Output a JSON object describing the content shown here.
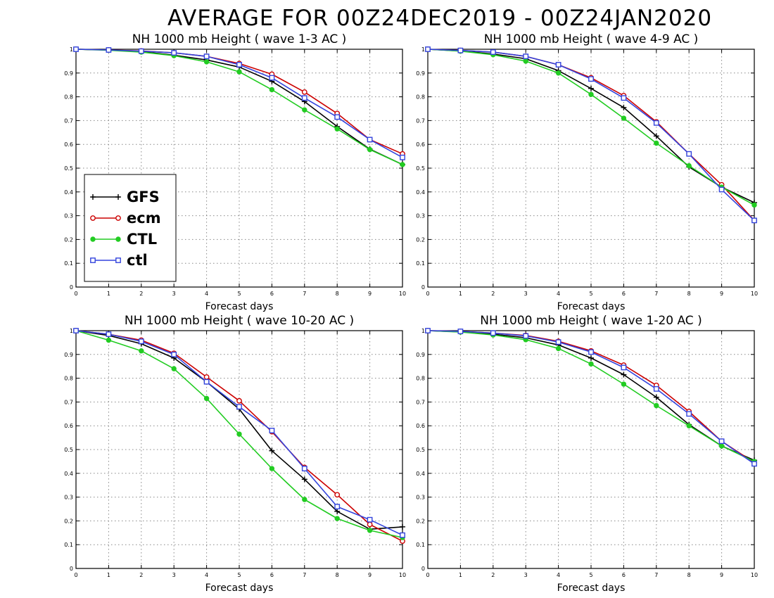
{
  "title": "AVERAGE FOR 00Z24DEC2019 - 00Z24JAN2020",
  "chart_data": [
    {
      "type": "line",
      "title": "NH 1000 mb Height ( wave 1-3 AC )",
      "xlabel": "Forecast days",
      "ylabel": "",
      "xlim": [
        0,
        10
      ],
      "ylim": [
        0,
        1
      ],
      "x": [
        0,
        1,
        2,
        3,
        4,
        5,
        6,
        7,
        8,
        9,
        10
      ],
      "xticks": [
        "0",
        "1",
        "2",
        "3",
        "4",
        "5",
        "6",
        "7",
        "8",
        "9",
        "10"
      ],
      "yticks": [
        "0",
        "0.1",
        "0.2",
        "0.3",
        "0.4",
        "0.5",
        "0.6",
        "0.7",
        "0.8",
        "0.9",
        "1"
      ],
      "grid": true,
      "series": [
        {
          "name": "GFS",
          "values": [
            1.0,
            0.997,
            0.99,
            0.975,
            0.955,
            0.925,
            0.865,
            0.78,
            0.675,
            0.58,
            0.515
          ]
        },
        {
          "name": "ecm",
          "values": [
            1.0,
            0.997,
            0.993,
            0.985,
            0.97,
            0.94,
            0.895,
            0.82,
            0.73,
            0.62,
            0.56
          ]
        },
        {
          "name": "CTL",
          "values": [
            1.0,
            0.996,
            0.988,
            0.973,
            0.947,
            0.905,
            0.83,
            0.745,
            0.665,
            0.578,
            0.515
          ]
        },
        {
          "name": "ctl",
          "values": [
            1.0,
            0.997,
            0.992,
            0.985,
            0.97,
            0.935,
            0.88,
            0.795,
            0.715,
            0.62,
            0.545
          ]
        }
      ]
    },
    {
      "type": "line",
      "title": "NH 1000 mb Height ( wave 4-9 AC )",
      "xlabel": "Forecast days",
      "ylabel": "",
      "xlim": [
        0,
        10
      ],
      "ylim": [
        0,
        1
      ],
      "x": [
        0,
        1,
        2,
        3,
        4,
        5,
        6,
        7,
        8,
        9,
        10
      ],
      "xticks": [
        "0",
        "1",
        "2",
        "3",
        "4",
        "5",
        "6",
        "7",
        "8",
        "9",
        "10"
      ],
      "yticks": [
        "0",
        "0.1",
        "0.2",
        "0.3",
        "0.4",
        "0.5",
        "0.6",
        "0.7",
        "0.8",
        "0.9",
        "1"
      ],
      "grid": true,
      "series": [
        {
          "name": "GFS",
          "values": [
            1.0,
            0.993,
            0.98,
            0.96,
            0.91,
            0.835,
            0.755,
            0.635,
            0.505,
            0.42,
            0.355
          ]
        },
        {
          "name": "ecm",
          "values": [
            1.0,
            0.995,
            0.988,
            0.97,
            0.935,
            0.88,
            0.805,
            0.695,
            0.56,
            0.43,
            0.28
          ]
        },
        {
          "name": "CTL",
          "values": [
            1.0,
            0.992,
            0.977,
            0.95,
            0.9,
            0.81,
            0.71,
            0.605,
            0.51,
            0.42,
            0.345
          ]
        },
        {
          "name": "ctl",
          "values": [
            1.0,
            0.995,
            0.988,
            0.97,
            0.935,
            0.875,
            0.795,
            0.69,
            0.56,
            0.41,
            0.28
          ]
        }
      ]
    },
    {
      "type": "line",
      "title": "NH 1000 mb Height ( wave 10-20 AC )",
      "xlabel": "Forecast days",
      "ylabel": "",
      "xlim": [
        0,
        10
      ],
      "ylim": [
        0,
        1
      ],
      "x": [
        0,
        1,
        2,
        3,
        4,
        5,
        6,
        7,
        8,
        9,
        10
      ],
      "xticks": [
        "0",
        "1",
        "2",
        "3",
        "4",
        "5",
        "6",
        "7",
        "8",
        "9",
        "10"
      ],
      "yticks": [
        "0",
        "0.1",
        "0.2",
        "0.3",
        "0.4",
        "0.5",
        "0.6",
        "0.7",
        "0.8",
        "0.9",
        "1"
      ],
      "grid": true,
      "series": [
        {
          "name": "GFS",
          "values": [
            1.0,
            0.98,
            0.945,
            0.885,
            0.785,
            0.67,
            0.495,
            0.375,
            0.24,
            0.165,
            0.175
          ]
        },
        {
          "name": "ecm",
          "values": [
            1.0,
            0.985,
            0.96,
            0.905,
            0.805,
            0.705,
            0.575,
            0.425,
            0.31,
            0.185,
            0.115
          ]
        },
        {
          "name": "CTL",
          "values": [
            1.0,
            0.96,
            0.915,
            0.84,
            0.715,
            0.565,
            0.42,
            0.29,
            0.21,
            0.16,
            0.13
          ]
        },
        {
          "name": "ctl",
          "values": [
            1.0,
            0.985,
            0.955,
            0.9,
            0.785,
            0.68,
            0.58,
            0.42,
            0.26,
            0.205,
            0.14
          ]
        }
      ]
    },
    {
      "type": "line",
      "title": "NH 1000 mb Height ( wave 1-20 AC )",
      "xlabel": "Forecast days",
      "ylabel": "",
      "xlim": [
        0,
        10
      ],
      "ylim": [
        0,
        1
      ],
      "x": [
        0,
        1,
        2,
        3,
        4,
        5,
        6,
        7,
        8,
        9,
        10
      ],
      "xticks": [
        "0",
        "1",
        "2",
        "3",
        "4",
        "5",
        "6",
        "7",
        "8",
        "9",
        "10"
      ],
      "yticks": [
        "0",
        "0.1",
        "0.2",
        "0.3",
        "0.4",
        "0.5",
        "0.6",
        "0.7",
        "0.8",
        "0.9",
        "1"
      ],
      "grid": true,
      "series": [
        {
          "name": "GFS",
          "values": [
            1.0,
            0.995,
            0.985,
            0.97,
            0.94,
            0.885,
            0.815,
            0.72,
            0.605,
            0.515,
            0.455
          ]
        },
        {
          "name": "ecm",
          "values": [
            1.0,
            0.997,
            0.99,
            0.98,
            0.955,
            0.915,
            0.855,
            0.77,
            0.66,
            0.535,
            0.445
          ]
        },
        {
          "name": "CTL",
          "values": [
            1.0,
            0.994,
            0.982,
            0.962,
            0.925,
            0.86,
            0.775,
            0.685,
            0.6,
            0.515,
            0.45
          ]
        },
        {
          "name": "ctl",
          "values": [
            1.0,
            0.997,
            0.99,
            0.978,
            0.952,
            0.91,
            0.845,
            0.755,
            0.65,
            0.535,
            0.44
          ]
        }
      ]
    }
  ],
  "legend": {
    "placement": "lower-left of top-left panel",
    "entries": [
      {
        "label": "GFS",
        "color": "#000000",
        "marker": "plus"
      },
      {
        "label": "ecm",
        "color": "#cc0000",
        "marker": "open-circle"
      },
      {
        "label": "CTL",
        "color": "#22cc22",
        "marker": "filled-circle"
      },
      {
        "label": "ctl",
        "color": "#3344dd",
        "marker": "open-square"
      }
    ]
  },
  "colors": {
    "GFS": "#000000",
    "ecm": "#cc0000",
    "CTL": "#22cc22",
    "ctl": "#3344dd",
    "grid": "#888888"
  }
}
